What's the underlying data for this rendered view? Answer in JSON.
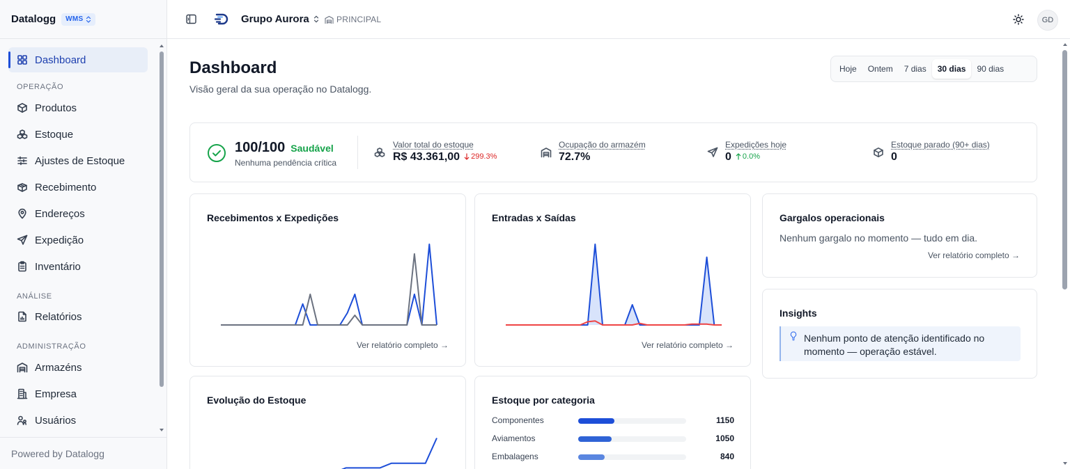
{
  "sidebar": {
    "brand": "Datalogg",
    "badge": "WMS",
    "sections": {
      "operacao": "OPERAÇÃO",
      "analise": "ANÁLISE",
      "administracao": "ADMINISTRAÇÃO"
    },
    "items": [
      {
        "label": "Dashboard",
        "icon": "layout-grid-icon",
        "active": true
      },
      {
        "label": "Produtos",
        "icon": "box-icon"
      },
      {
        "label": "Estoque",
        "icon": "boxes-icon"
      },
      {
        "label": "Ajustes de Estoque",
        "icon": "sliders-icon"
      },
      {
        "label": "Recebimento",
        "icon": "package-open-icon"
      },
      {
        "label": "Endereços",
        "icon": "map-pin-icon"
      },
      {
        "label": "Expedição",
        "icon": "send-icon"
      },
      {
        "label": "Inventário",
        "icon": "clipboard-icon"
      },
      {
        "label": "Relatórios",
        "icon": "file-chart-icon"
      },
      {
        "label": "Armazéns",
        "icon": "warehouse-icon"
      },
      {
        "label": "Empresa",
        "icon": "building-icon"
      },
      {
        "label": "Usuários",
        "icon": "users-icon"
      }
    ],
    "footer": "Powered by Datalogg"
  },
  "topbar": {
    "org": "Grupo Aurora",
    "warehouse": "PRINCIPAL",
    "avatar": "GD"
  },
  "page": {
    "title": "Dashboard",
    "subtitle": "Visão geral da sua operação no Datalogg.",
    "ranges": [
      "Hoje",
      "Ontem",
      "7 dias",
      "30 dias",
      "90 dias"
    ],
    "selected_range": "30 dias"
  },
  "health": {
    "score": "100/100",
    "status": "Saudável",
    "note": "Nenhuma pendência crítica"
  },
  "kpis": {
    "valor": {
      "label": "Valor total do estoque",
      "value": "R$ 43.361,00",
      "delta": "299.3%"
    },
    "ocupacao": {
      "label": "Ocupação do armazém",
      "value": "72.7%"
    },
    "expedicoes": {
      "label": "Expedições hoje",
      "value": "0",
      "delta": "0.0%"
    },
    "parado": {
      "label": "Estoque parado (90+ dias)",
      "value": "0"
    }
  },
  "cards": {
    "rec_exp": {
      "title": "Recebimentos x Expedições",
      "link": "Ver relatório completo →"
    },
    "ent_sai": {
      "title": "Entradas x Saídas",
      "link": "Ver relatório completo →"
    },
    "gargalos": {
      "title": "Gargalos operacionais",
      "text": "Nenhum gargalo no momento — tudo em dia.",
      "link": "Ver relatório completo →"
    },
    "insights": {
      "title": "Insights",
      "line1": "Nenhum ponto de atenção identificado no",
      "line2": "momento — operação estável."
    },
    "evolucao": {
      "title": "Evolução do Estoque"
    },
    "categoria": {
      "title": "Estoque por categoria"
    }
  },
  "colors": {
    "accent": "#1d4ed8",
    "grey_series": "#6b7280",
    "red_series": "#ef4444",
    "healthy": "#16a34a",
    "negative": "#dc2626"
  },
  "chart_data": [
    {
      "type": "line",
      "x": [
        1,
        2,
        3,
        4,
        5,
        6,
        7,
        8,
        9,
        10,
        11,
        12,
        13,
        14,
        15,
        16,
        17,
        18,
        19,
        20,
        21,
        22,
        23,
        24,
        25,
        26,
        27,
        28,
        29,
        30
      ],
      "ylim": [
        0,
        1
      ],
      "series": [
        {
          "values": [
            0,
            0,
            0,
            0,
            0,
            0,
            0,
            0,
            0,
            0,
            0,
            0.26,
            0,
            0,
            0,
            0,
            0,
            0.15,
            0.38,
            0,
            0,
            0,
            0,
            0,
            0,
            0,
            0.38,
            0,
            1,
            0
          ]
        },
        {
          "values": [
            0,
            0,
            0,
            0,
            0,
            0,
            0,
            0,
            0,
            0,
            0,
            0,
            0.38,
            0,
            0,
            0,
            0,
            0,
            0.12,
            0,
            0,
            0,
            0,
            0,
            0,
            0,
            0.88,
            0,
            0,
            0
          ]
        }
      ]
    },
    {
      "type": "area",
      "x": [
        1,
        2,
        3,
        4,
        5,
        6,
        7,
        8,
        9,
        10,
        11,
        12,
        13,
        14,
        15,
        16,
        17,
        18,
        19,
        20,
        21,
        22,
        23,
        24,
        25,
        26,
        27,
        28,
        29,
        30
      ],
      "ylim": [
        0,
        1
      ],
      "series": [
        {
          "values": [
            0,
            0,
            0,
            0,
            0,
            0,
            0,
            0,
            0,
            0,
            0,
            0,
            1,
            0,
            0,
            0,
            0,
            0.25,
            0,
            0,
            0,
            0,
            0,
            0,
            0,
            0,
            0,
            0.84,
            0,
            0
          ]
        },
        {
          "values": [
            0,
            0,
            0,
            0,
            0,
            0,
            0,
            0,
            0,
            0,
            0,
            0.04,
            0.05,
            0,
            0,
            0,
            0,
            0,
            0.02,
            0,
            0,
            0,
            0,
            0,
            0,
            0.01,
            0.01,
            0.01,
            0,
            0
          ]
        }
      ]
    },
    {
      "type": "line",
      "x": [
        1,
        2,
        3,
        4,
        5,
        6,
        7,
        8,
        9,
        10,
        11,
        12,
        13,
        14,
        15,
        16,
        17,
        18,
        19,
        20
      ],
      "ylim": [
        0,
        1
      ],
      "series": [
        {
          "values": [
            0,
            0,
            0,
            0,
            0,
            0,
            0,
            0,
            0,
            0,
            0,
            0.1,
            0.1,
            0.1,
            0.1,
            0.2,
            0.2,
            0.2,
            0.2,
            0.75
          ]
        }
      ]
    },
    {
      "type": "bar",
      "title": "Estoque por categoria",
      "categories": [
        "Componentes",
        "Aviamentos",
        "Embalagens"
      ],
      "values": [
        1150,
        1050,
        840
      ],
      "ylim": [
        0,
        3400
      ]
    }
  ]
}
